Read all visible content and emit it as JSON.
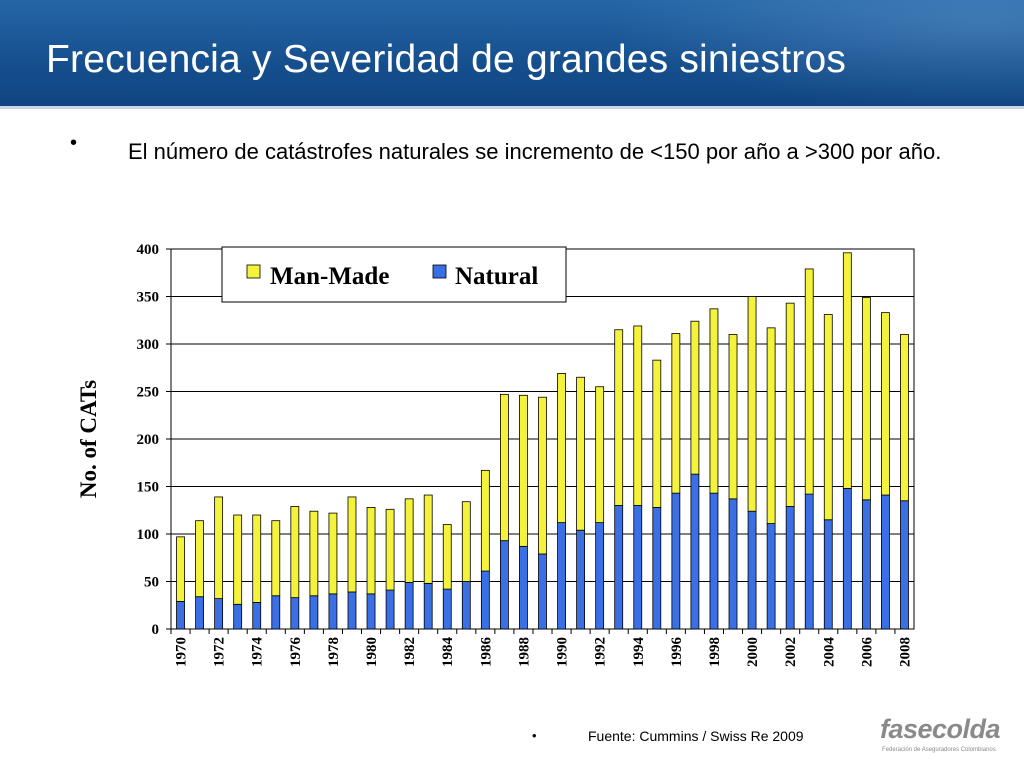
{
  "slide": {
    "title": "Frecuencia y Severidad de grandes siniestros",
    "bullet": "El número de catástrofes naturales se incremento de <150 por año a >300 por año.",
    "bullet_symbol": "•",
    "source": "Fuente: Cummins / Swiss Re 2009",
    "logo_text": "fasecolda",
    "logo_subtext": "Federación de Aseguradores Colombianos"
  },
  "chart_data": {
    "type": "bar",
    "stacked": true,
    "title": "",
    "xlabel": "",
    "ylabel": "No. of CATs",
    "ylim": [
      0,
      400
    ],
    "yticks": [
      0,
      50,
      100,
      150,
      200,
      250,
      300,
      350,
      400
    ],
    "grid": true,
    "legend": "top-left",
    "categories": [
      1970,
      1971,
      1972,
      1973,
      1974,
      1975,
      1976,
      1977,
      1978,
      1979,
      1980,
      1981,
      1982,
      1983,
      1984,
      1985,
      1986,
      1987,
      1988,
      1989,
      1990,
      1991,
      1992,
      1993,
      1994,
      1995,
      1996,
      1997,
      1998,
      1999,
      2000,
      2001,
      2002,
      2003,
      2004,
      2005,
      2006,
      2007,
      2008
    ],
    "xtick_labels": [
      "1970",
      "1972",
      "1974",
      "1976",
      "1978",
      "1980",
      "1982",
      "1984",
      "1986",
      "1988",
      "1990",
      "1992",
      "1994",
      "1996",
      "1998",
      "2000",
      "2002",
      "2004",
      "2006",
      "2008"
    ],
    "series": [
      {
        "name": "Natural",
        "color": "#3a6fe6",
        "values": [
          29,
          34,
          32,
          26,
          28,
          35,
          33,
          35,
          37,
          39,
          37,
          41,
          49,
          48,
          42,
          50,
          61,
          93,
          87,
          79,
          112,
          104,
          112,
          130,
          130,
          128,
          143,
          163,
          143,
          137,
          124,
          111,
          129,
          142,
          115,
          148,
          136,
          141,
          135
        ]
      },
      {
        "name": "Man-Made",
        "color": "#f4f23a",
        "values": [
          68,
          80,
          107,
          94,
          92,
          79,
          96,
          89,
          85,
          100,
          91,
          85,
          88,
          93,
          68,
          84,
          106,
          154,
          159,
          165,
          157,
          161,
          143,
          185,
          189,
          155,
          168,
          161,
          194,
          173,
          226,
          206,
          214,
          237,
          216,
          248,
          213,
          192,
          175
        ]
      }
    ],
    "legend_order": [
      "Man-Made",
      "Natural"
    ]
  }
}
